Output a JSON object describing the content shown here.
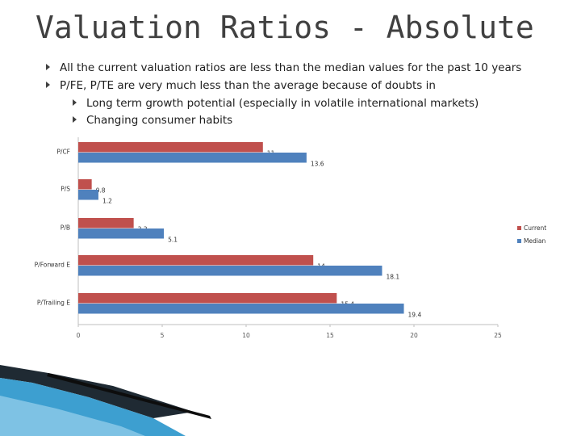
{
  "slide": {
    "title": "Valuation Ratios - Absolute",
    "bullets": [
      "All the current valuation ratios are less than the median values for the past 10 years",
      "P/FE, P/TE are very much less than the average because of doubts in",
      "Long term growth potential (especially in volatile international markets)",
      "Changing consumer habits"
    ]
  },
  "chart_data": {
    "type": "bar",
    "orientation": "horizontal",
    "categories": [
      "P/CF",
      "P/S",
      "P/B",
      "P/Forward E",
      "P/Trailing E"
    ],
    "series": [
      {
        "name": "Current",
        "values": [
          11,
          0.8,
          3.3,
          14,
          15.4
        ],
        "color": "#c0504d"
      },
      {
        "name": "Median",
        "values": [
          13.6,
          1.2,
          5.1,
          18.1,
          19.4
        ],
        "color": "#4f81bd"
      }
    ],
    "xlim": [
      0,
      25
    ],
    "xticks": [
      0,
      5,
      10,
      15,
      20,
      25
    ],
    "legend": "right",
    "grid": false
  }
}
